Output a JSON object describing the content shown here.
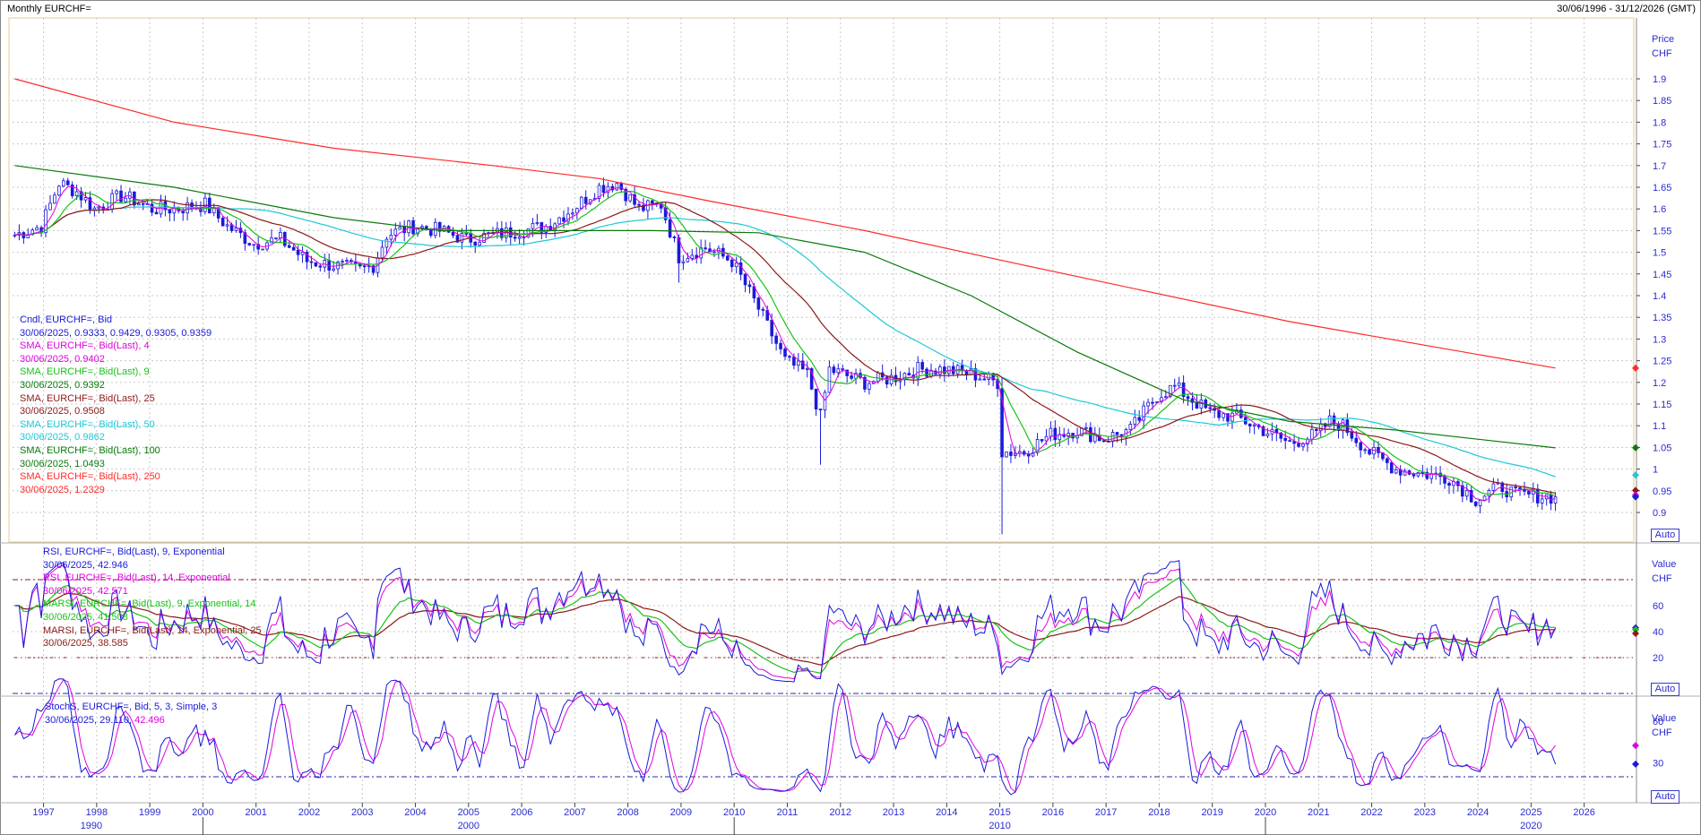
{
  "header": {
    "title": "Monthly EURCHF=",
    "range": "30/06/1996 - 31/12/2026 (GMT)"
  },
  "colors": {
    "candle": "#1a1ad9",
    "sma4": "#e000e0",
    "sma9": "#19c219",
    "sma25": "#8b1a1a",
    "sma50": "#1ec8d8",
    "sma100": "#0a7a0a",
    "sma250": "#ff2a2a",
    "axis_text": "#2b2bd0",
    "grid": "#c8c8c8",
    "panel_border": "#e8c890"
  },
  "price_panel": {
    "axis_title": "Price",
    "axis_unit": "CHF",
    "auto": "Auto",
    "ticks": [
      "1.9",
      "1.85",
      "1.8",
      "1.75",
      "1.7",
      "1.65",
      "1.6",
      "1.55",
      "1.5",
      "1.45",
      "1.4",
      "1.35",
      "1.3",
      "1.25",
      "1.2",
      "1.15",
      "1.1",
      "1.05",
      "1",
      "0.95",
      "0.9"
    ],
    "legend": [
      {
        "text": "Cndl, EURCHF=, Bid",
        "color": "#1a1ad9"
      },
      {
        "text": "30/06/2025, 0.9333, 0.9429, 0.9305, 0.9359",
        "color": "#1a1ad9"
      },
      {
        "text": "SMA, EURCHF=, Bid(Last),  4",
        "color": "#e000e0"
      },
      {
        "text": "30/06/2025, 0.9402",
        "color": "#e000e0"
      },
      {
        "text": "SMA, EURCHF=, Bid(Last),  9",
        "color": "#19c219"
      },
      {
        "text": "30/06/2025, 0.9392",
        "color": "#0a7a0a"
      },
      {
        "text": "SMA, EURCHF=, Bid(Last),  25",
        "color": "#8b1a1a"
      },
      {
        "text": "30/06/2025, 0.9508",
        "color": "#8b1a1a"
      },
      {
        "text": "SMA, EURCHF=, Bid(Last),  50",
        "color": "#1ec8d8"
      },
      {
        "text": "30/06/2025, 0.9862",
        "color": "#1ec8d8"
      },
      {
        "text": "SMA, EURCHF=, Bid(Last),  100",
        "color": "#0a7a0a"
      },
      {
        "text": "30/06/2025, 1.0493",
        "color": "#0a7a0a"
      },
      {
        "text": "SMA, EURCHF=, Bid(Last),  250",
        "color": "#ff2a2a"
      },
      {
        "text": "30/06/2025, 1.2329",
        "color": "#ff2a2a"
      }
    ]
  },
  "rsi_panel": {
    "axis_title": "Value",
    "axis_unit": "CHF",
    "auto": "Auto",
    "ticks": [
      "60",
      "40",
      "20"
    ],
    "legend": [
      {
        "text": "RSI, EURCHF=, Bid(Last),  9, Exponential",
        "color": "#1a1ad9"
      },
      {
        "text": "30/06/2025, 42.946",
        "color": "#1a1ad9"
      },
      {
        "text": "RSI, EURCHF=, Bid(Last),  14, Exponential",
        "color": "#e000e0"
      },
      {
        "text": "30/06/2025, 42.571",
        "color": "#e000e0"
      },
      {
        "text": "MARSI, EURCHF=, Bid(Last),  9, Exponential, 14",
        "color": "#19c219"
      },
      {
        "text": "30/06/2025, 41.508",
        "color": "#19c219"
      },
      {
        "text": "MARSI, EURCHF=, Bid(Last),  14, Exponential, 25",
        "color": "#8b1a1a"
      },
      {
        "text": "30/06/2025, 38.585",
        "color": "#8b1a1a"
      }
    ]
  },
  "stoch_panel": {
    "axis_title": "Value",
    "axis_unit": "CHF",
    "auto": "Auto",
    "ticks": [
      "60",
      "30"
    ],
    "legend_line1": "StochS, EURCHF=, Bid,  5, 3, Simple, 3",
    "legend_line2_date": "30/06/2025, 29.110,",
    "legend_line2_val": "42.496"
  },
  "x_axis": {
    "years": [
      "1997",
      "1998",
      "1999",
      "2000",
      "2001",
      "2002",
      "2003",
      "2004",
      "2005",
      "2006",
      "2007",
      "2008",
      "2009",
      "2010",
      "2011",
      "2012",
      "2013",
      "2014",
      "2015",
      "2016",
      "2017",
      "2018",
      "2019",
      "2020",
      "2021",
      "2022",
      "2023",
      "2024",
      "2025",
      "2026"
    ],
    "decades": [
      "1990",
      "2000",
      "2010",
      "2020"
    ]
  },
  "chart_data": {
    "type": "candlestick",
    "title": "Monthly EURCHF=",
    "ylabel": "Price CHF",
    "ylim": [
      0.85,
      1.93
    ],
    "x_range": [
      "1996-06",
      "2026-12"
    ],
    "close_anchors": [
      [
        "1996-06",
        1.54
      ],
      [
        "1996-12",
        1.56
      ],
      [
        "1997-04",
        1.66
      ],
      [
        "1997-08",
        1.64
      ],
      [
        "1997-12",
        1.6
      ],
      [
        "1998-06",
        1.63
      ],
      [
        "1998-09",
        1.62
      ],
      [
        "1999-01",
        1.6
      ],
      [
        "1999-06",
        1.6
      ],
      [
        "2000-01",
        1.61
      ],
      [
        "2000-06",
        1.56
      ],
      [
        "2000-12",
        1.52
      ],
      [
        "2001-06",
        1.53
      ],
      [
        "2001-12",
        1.48
      ],
      [
        "2002-06",
        1.47
      ],
      [
        "2002-12",
        1.46
      ],
      [
        "2003-03",
        1.47
      ],
      [
        "2003-06",
        1.54
      ],
      [
        "2003-12",
        1.56
      ],
      [
        "2004-06",
        1.55
      ],
      [
        "2004-12",
        1.53
      ],
      [
        "2005-06",
        1.54
      ],
      [
        "2005-12",
        1.55
      ],
      [
        "2006-06",
        1.56
      ],
      [
        "2006-12",
        1.6
      ],
      [
        "2007-06",
        1.65
      ],
      [
        "2007-10",
        1.66
      ],
      [
        "2008-03",
        1.6
      ],
      [
        "2008-08",
        1.61
      ],
      [
        "2008-12",
        1.49
      ],
      [
        "2009-06",
        1.51
      ],
      [
        "2009-12",
        1.48
      ],
      [
        "2010-06",
        1.37
      ],
      [
        "2010-12",
        1.25
      ],
      [
        "2011-05",
        1.22
      ],
      [
        "2011-08",
        1.12
      ],
      [
        "2011-10",
        1.23
      ],
      [
        "2012-06",
        1.2
      ],
      [
        "2012-12",
        1.21
      ],
      [
        "2013-06",
        1.23
      ],
      [
        "2013-12",
        1.23
      ],
      [
        "2014-06",
        1.22
      ],
      [
        "2014-12",
        1.2
      ],
      [
        "2015-01",
        1.04
      ],
      [
        "2015-06",
        1.04
      ],
      [
        "2015-12",
        1.08
      ],
      [
        "2016-06",
        1.09
      ],
      [
        "2016-12",
        1.07
      ],
      [
        "2017-06",
        1.09
      ],
      [
        "2017-12",
        1.17
      ],
      [
        "2018-04",
        1.19
      ],
      [
        "2018-12",
        1.13
      ],
      [
        "2019-06",
        1.12
      ],
      [
        "2019-12",
        1.09
      ],
      [
        "2020-06",
        1.06
      ],
      [
        "2020-12",
        1.08
      ],
      [
        "2021-03",
        1.11
      ],
      [
        "2021-06",
        1.1
      ],
      [
        "2021-12",
        1.04
      ],
      [
        "2022-06",
        1.0
      ],
      [
        "2022-12",
        0.99
      ],
      [
        "2023-06",
        0.98
      ],
      [
        "2023-12",
        0.93
      ],
      [
        "2024-06",
        0.96
      ],
      [
        "2024-09",
        0.94
      ],
      [
        "2024-12",
        0.94
      ],
      [
        "2025-06",
        0.936
      ]
    ],
    "last_candle": {
      "date": "30/06/2025",
      "open": 0.9333,
      "high": 0.9429,
      "low": 0.9305,
      "close": 0.9359
    },
    "series": [
      {
        "name": "SMA, EURCHF=, Bid(Last),  4",
        "period": 4,
        "last": 0.9402
      },
      {
        "name": "SMA, EURCHF=, Bid(Last),  9",
        "period": 9,
        "last": 0.9392
      },
      {
        "name": "SMA, EURCHF=, Bid(Last),  25",
        "period": 25,
        "last": 0.9508
      },
      {
        "name": "SMA, EURCHF=, Bid(Last),  50",
        "period": 50,
        "last": 0.9862
      },
      {
        "name": "SMA, EURCHF=, Bid(Last),  100",
        "period": 100,
        "last": 1.0493
      },
      {
        "name": "SMA, EURCHF=, Bid(Last),  250",
        "period": 250,
        "last": 1.2329
      }
    ],
    "sma250_line": [
      [
        "1996-06",
        1.9
      ],
      [
        "1999-06",
        1.8
      ],
      [
        "2002-06",
        1.74
      ],
      [
        "2005-06",
        1.7
      ],
      [
        "2007-06",
        1.67
      ],
      [
        "2009-06",
        1.62
      ],
      [
        "2012-06",
        1.55
      ],
      [
        "2015-06",
        1.47
      ],
      [
        "2020-06",
        1.34
      ],
      [
        "2025-06",
        1.233
      ]
    ],
    "sma100_line": [
      [
        "1996-06",
        1.7
      ],
      [
        "1999-06",
        1.65
      ],
      [
        "2002-06",
        1.58
      ],
      [
        "2004-06",
        1.55
      ],
      [
        "2008-06",
        1.55
      ],
      [
        "2010-06",
        1.545
      ],
      [
        "2012-06",
        1.5
      ],
      [
        "2014-06",
        1.4
      ],
      [
        "2016-06",
        1.27
      ],
      [
        "2018-06",
        1.16
      ],
      [
        "2020-06",
        1.11
      ],
      [
        "2022-06",
        1.09
      ],
      [
        "2025-06",
        1.049
      ]
    ],
    "rsi": {
      "ylim": [
        0,
        100
      ],
      "levels": [
        80,
        20
      ],
      "last_rsi9": 42.946,
      "last_rsi14": 42.571,
      "last_marsi9": 41.508,
      "last_marsi14": 38.585
    },
    "stoch": {
      "ylim": [
        0,
        100
      ],
      "levels": [
        80,
        20
      ],
      "last_k": 29.11,
      "last_d": 42.496
    }
  }
}
